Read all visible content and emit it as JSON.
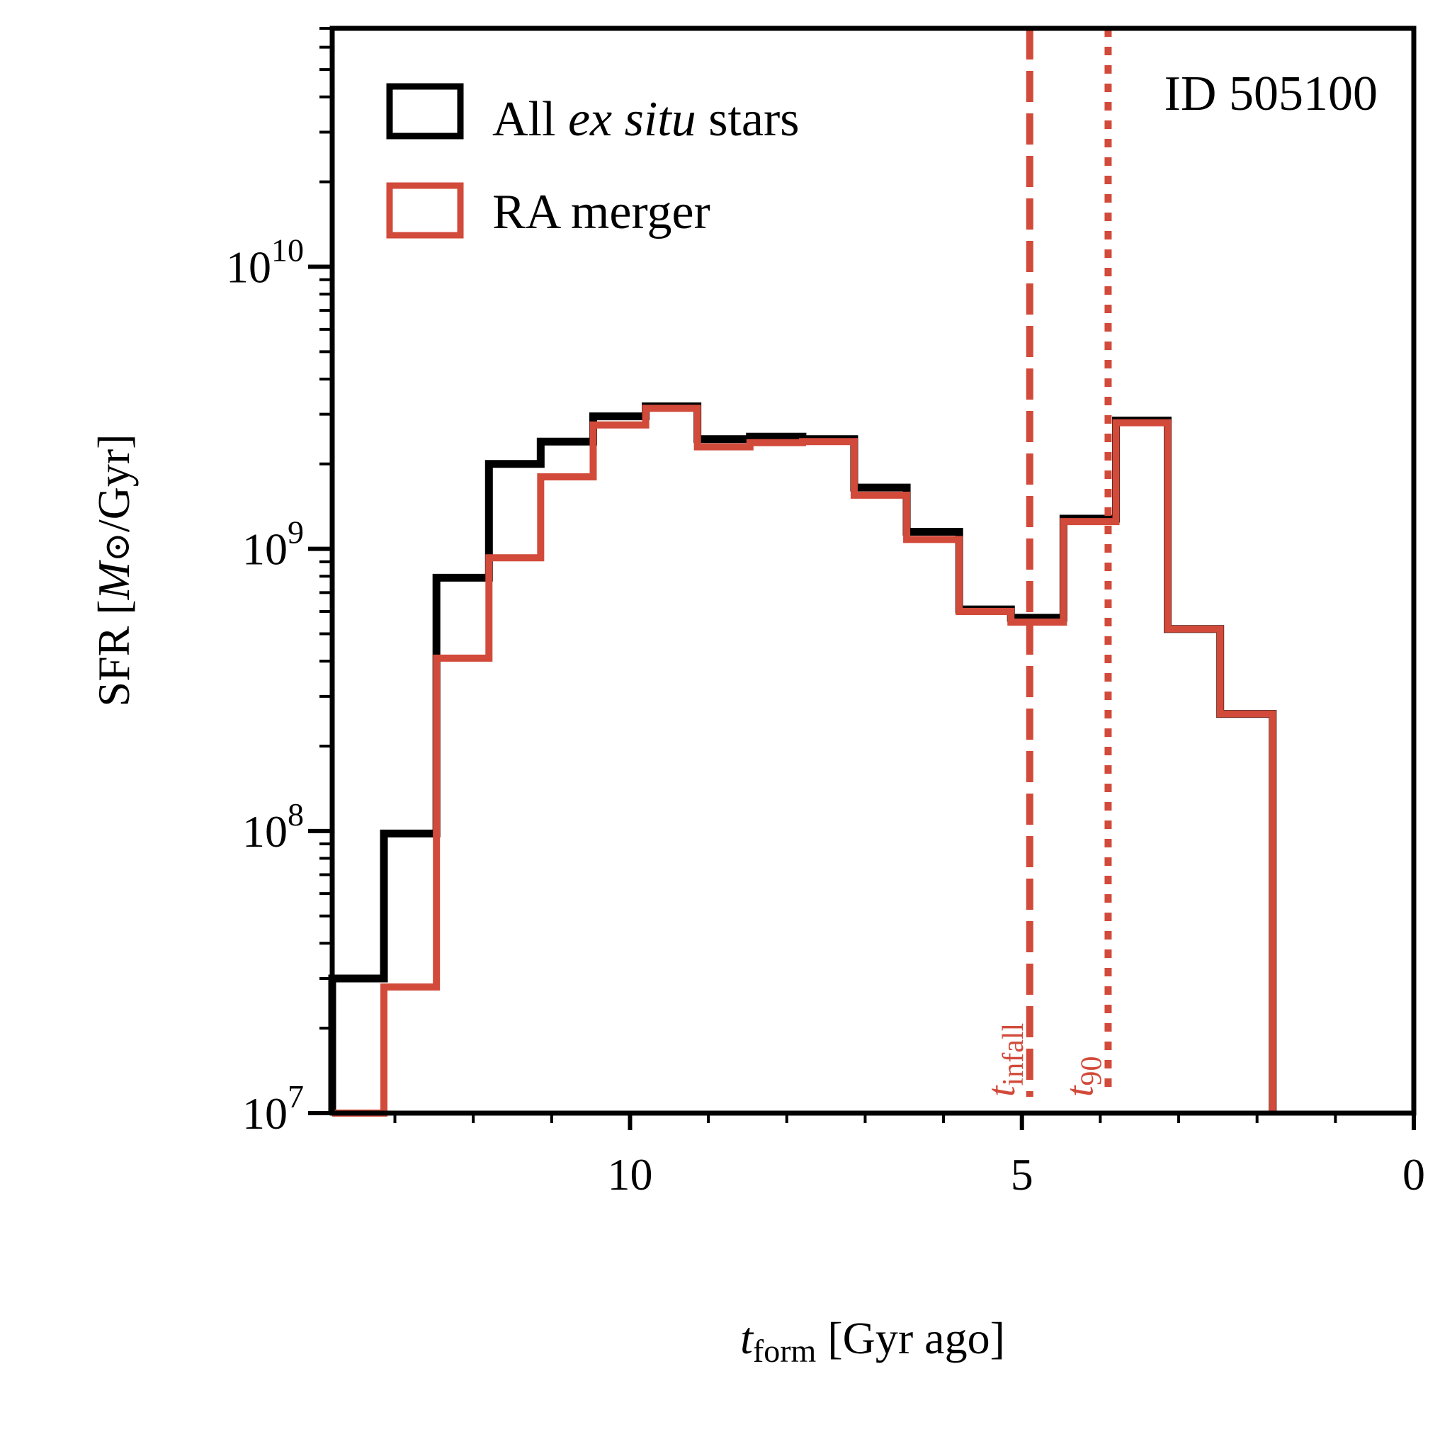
{
  "chart_data": {
    "type": "histogram-step",
    "id_label": "ID 505100",
    "x_axis": {
      "title_main": "t",
      "title_sub": "form",
      "title_rest": " [Gyr ago]",
      "range": [
        13.8,
        0
      ],
      "ticks": [
        10,
        5,
        0
      ],
      "tick_labels": [
        "10",
        "5",
        "0"
      ],
      "minor_ticks": [
        13,
        12,
        11,
        9,
        8,
        7,
        6,
        4,
        3,
        2,
        1
      ]
    },
    "y_axis": {
      "title_prefix": "SFR [",
      "title_M": "M",
      "title_sun": "⊙",
      "title_suffix": "/Gyr]",
      "scale": "log",
      "range": [
        10000000,
        70000000000
      ],
      "ticks": [
        10000000,
        100000000,
        1000000000,
        10000000000
      ],
      "tick_labels": [
        {
          "base": "10",
          "exp": "7"
        },
        {
          "base": "10",
          "exp": "8"
        },
        {
          "base": "10",
          "exp": "9"
        },
        {
          "base": "10",
          "exp": "10"
        }
      ]
    },
    "bin_edges": [
      13.8,
      13.14,
      12.47,
      11.8,
      11.14,
      10.47,
      9.8,
      9.14,
      8.47,
      7.8,
      7.14,
      6.47,
      5.8,
      5.14,
      4.47,
      3.8,
      3.14,
      2.47,
      1.8
    ],
    "series": [
      {
        "name": "All ex situ stars",
        "name_pre": "All ",
        "name_italic": "ex situ",
        "name_post": " stars",
        "color": "#000000",
        "values": [
          30000000,
          98000000,
          790000000,
          2000000000,
          2400000000,
          2950000000,
          3200000000,
          2450000000,
          2500000000,
          2450000000,
          1650000000,
          1150000000,
          610000000,
          570000000,
          1280000000,
          2850000000,
          520000000,
          260000000
        ]
      },
      {
        "name": "RA merger",
        "color": "#d24a3a",
        "values": [
          7000000,
          28000000,
          410000000,
          930000000,
          1800000000,
          2750000000,
          3150000000,
          2300000000,
          2380000000,
          2400000000,
          1550000000,
          1080000000,
          600000000,
          550000000,
          1250000000,
          2800000000,
          520000000,
          260000000
        ]
      }
    ],
    "markers": [
      {
        "name": "t_infall",
        "x": 4.9,
        "style": "dashed",
        "label_main": "t",
        "label_sub": "infall",
        "color": "#d24a3a"
      },
      {
        "name": "t_90",
        "x": 3.9,
        "style": "dotted",
        "label_main": "t",
        "label_sub": "90",
        "color": "#d24a3a"
      }
    ],
    "legend_position": "top-left"
  }
}
